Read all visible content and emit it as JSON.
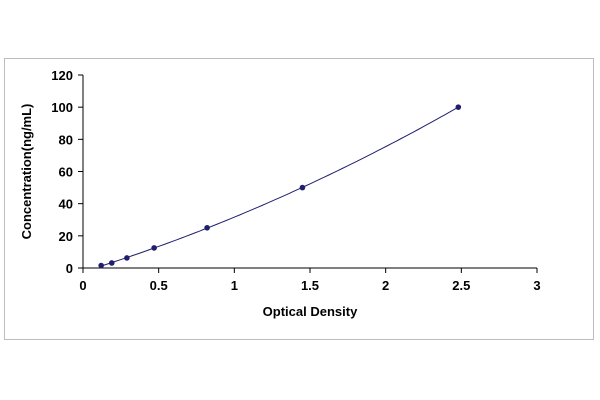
{
  "chart_data": {
    "type": "scatter",
    "title": "",
    "xlabel": "Optical Density",
    "ylabel": "Concentration(ng/mL)",
    "xlim": [
      0,
      3
    ],
    "ylim": [
      0,
      120
    ],
    "x_ticks": [
      "0",
      "0.5",
      "1",
      "1.5",
      "2",
      "2.5",
      "3"
    ],
    "y_ticks": [
      "0",
      "20",
      "40",
      "60",
      "80",
      "100",
      "120"
    ],
    "grid": false,
    "legend": "none",
    "marker_color": "#1f1f6e",
    "line_color": "#1f1f6e",
    "series": [
      {
        "x": [
          0.12,
          0.19,
          0.29,
          0.47,
          0.82,
          1.45,
          2.48
        ],
        "y": [
          1.56,
          3.12,
          6.25,
          12.5,
          25,
          50,
          100
        ],
        "trendline": true
      }
    ]
  }
}
